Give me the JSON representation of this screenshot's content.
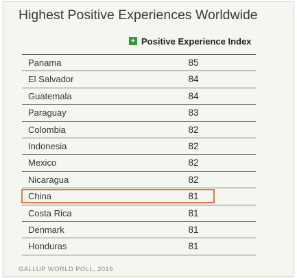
{
  "title": "Highest Positive Experiences Worldwide",
  "legend": {
    "label": "Positive Experience Index",
    "color": "#2f9a2f",
    "symbol": "+"
  },
  "highlight_color": "#e2784a",
  "source": "GALLUP WORLD POLL, 2019",
  "chart_data": {
    "type": "table",
    "title": "Highest Positive Experiences Worldwide",
    "columns": [
      "",
      "Positive Experience Index"
    ],
    "rows": [
      {
        "country": "Panama",
        "value": 85
      },
      {
        "country": "El Salvador",
        "value": 84
      },
      {
        "country": "Guatemala",
        "value": 84
      },
      {
        "country": "Paraguay",
        "value": 83
      },
      {
        "country": "Colombia",
        "value": 82
      },
      {
        "country": "Indonesia",
        "value": 82
      },
      {
        "country": "Mexico",
        "value": 82
      },
      {
        "country": "Nicaragua",
        "value": 82
      },
      {
        "country": "China",
        "value": 81,
        "highlighted": true
      },
      {
        "country": "Costa Rica",
        "value": 81
      },
      {
        "country": "Denmark",
        "value": 81
      },
      {
        "country": "Honduras",
        "value": 81
      }
    ]
  }
}
